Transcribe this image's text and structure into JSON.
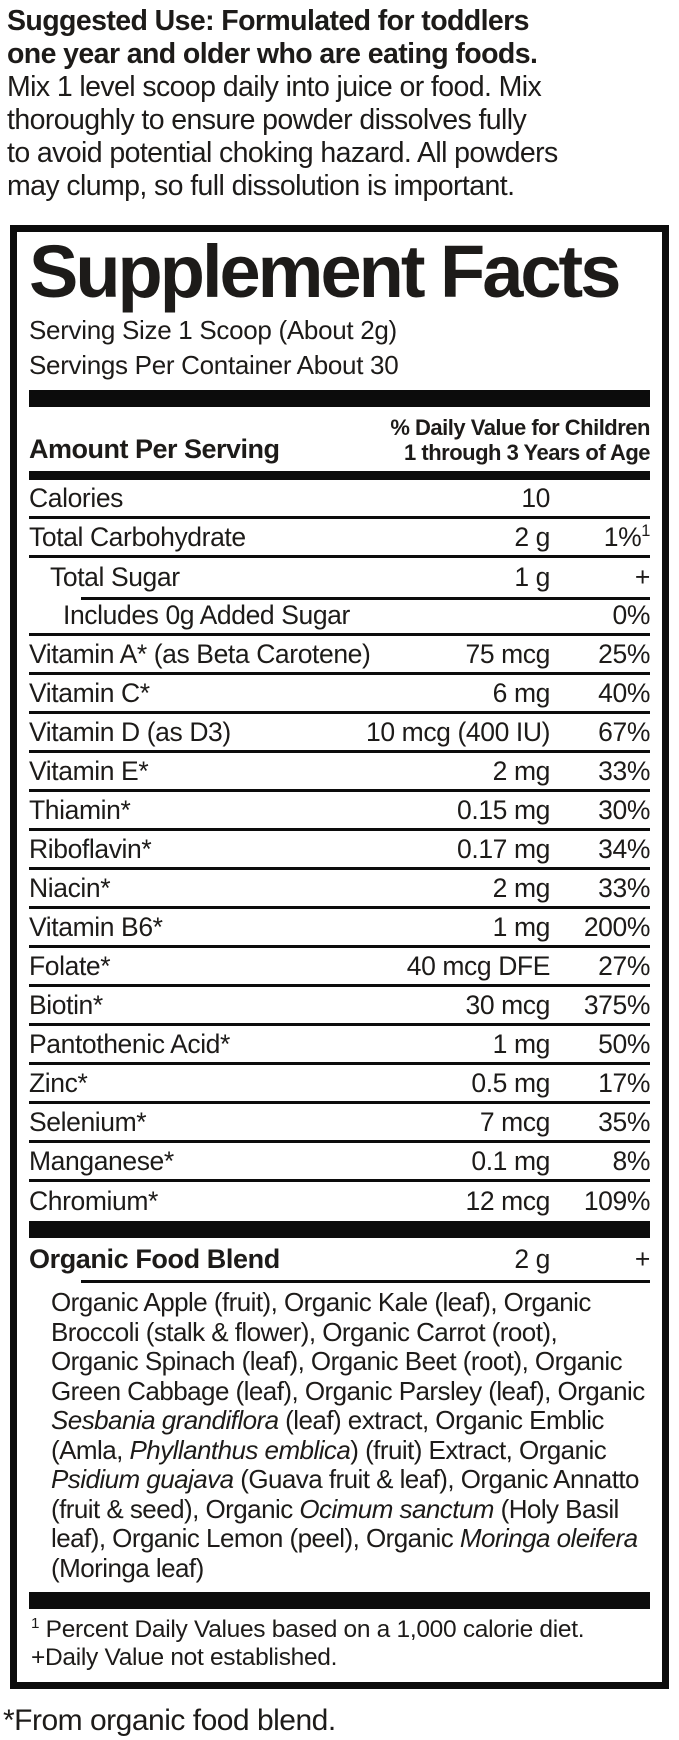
{
  "colors": {
    "ink": "#1d1b19",
    "bar": "#0c0c0c",
    "background": "#ffffff"
  },
  "suggested_use": {
    "bold_lines": [
      "Suggested Use: Formulated for toddlers",
      "one year and older who are eating foods."
    ],
    "lines": [
      "Mix 1 level scoop daily into juice or food. Mix",
      "thoroughly to ensure powder dissolves fully",
      "to avoid potential choking hazard. All powders",
      "may clump, so full dissolution is important."
    ]
  },
  "panel": {
    "title": "Supplement Facts",
    "serving_size": "Serving Size 1 Scoop (About 2g)",
    "servings_per_container": "Servings Per Container About 30",
    "amount_header": "Amount Per Serving",
    "dv_header_line1": "% Daily Value for Children",
    "dv_header_line2": "1 through 3 Years of Age",
    "rows": [
      {
        "name": "Calories",
        "amount": "10",
        "dv": ""
      },
      {
        "name": "Total Carbohydrate",
        "amount": "2 g",
        "dv": "1%",
        "dv_sup": "1"
      },
      {
        "name": "Total Sugar",
        "amount": "1 g",
        "dv": "+",
        "indent": 1
      },
      {
        "name": "Includes 0g Added Sugar",
        "amount": "",
        "dv": "0%",
        "indent": 2,
        "sep": "indent"
      },
      {
        "name": "Vitamin A* (as Beta Carotene)",
        "amount": "75 mcg",
        "dv": "25%"
      },
      {
        "name": "Vitamin C*",
        "amount": "6 mg",
        "dv": "40%"
      },
      {
        "name": "Vitamin D (as D3)",
        "amount": "10 mcg (400 IU)",
        "dv": "67%"
      },
      {
        "name": "Vitamin E*",
        "amount": "2 mg",
        "dv": "33%"
      },
      {
        "name": "Thiamin*",
        "amount": "0.15 mg",
        "dv": "30%"
      },
      {
        "name": "Riboflavin*",
        "amount": "0.17 mg",
        "dv": "34%"
      },
      {
        "name": "Niacin*",
        "amount": "2 mg",
        "dv": "33%"
      },
      {
        "name": "Vitamin B6*",
        "amount": "1 mg",
        "dv": "200%"
      },
      {
        "name": "Folate*",
        "amount": "40 mcg DFE",
        "dv": "27%"
      },
      {
        "name": "Biotin*",
        "amount": "30 mcg",
        "dv": "375%"
      },
      {
        "name": "Pantothenic Acid*",
        "amount": "1 mg",
        "dv": "50%"
      },
      {
        "name": "Zinc*",
        "amount": "0.5 mg",
        "dv": "17%"
      },
      {
        "name": "Selenium*",
        "amount": "7 mcg",
        "dv": "35%"
      },
      {
        "name": "Manganese*",
        "amount": "0.1 mg",
        "dv": "8%"
      },
      {
        "name": "Chromium*",
        "amount": "12 mcg",
        "dv": "109%"
      }
    ],
    "blend": {
      "name": "Organic Food Blend",
      "amount": "2 g",
      "dv": "+",
      "ingredients": [
        {
          "t": "Organic Apple (fruit), Organic Kale (leaf), Organic Broccoli (stalk & flower), Organic Carrot (root), Organic Spinach (leaf), Organic Beet (root), Organic Green Cabbage (leaf), Organic Parsley (leaf), Organic "
        },
        {
          "t": "Sesbania grandiflora",
          "i": true
        },
        {
          "t": " (leaf) extract, Organic Emblic (Amla, "
        },
        {
          "t": "Phyllanthus emblica",
          "i": true
        },
        {
          "t": ") (fruit) Extract, Organic "
        },
        {
          "t": "Psidium guajava",
          "i": true
        },
        {
          "t": " (Guava fruit & leaf), Organic Annatto (fruit & seed), Organic "
        },
        {
          "t": "Ocimum sanctum",
          "i": true
        },
        {
          "t": " (Holy Basil leaf), Organic Lemon (peel), Organic "
        },
        {
          "t": "Moringa oleifera",
          "i": true
        },
        {
          "t": " (Moringa leaf)"
        }
      ]
    },
    "footnotes": {
      "note1_sup": "1",
      "note1": " Percent Daily Values based on a 1,000 calorie diet.",
      "note2": "+Daily Value not established."
    }
  },
  "footer": {
    "asterisk_note": "*From organic food blend."
  }
}
